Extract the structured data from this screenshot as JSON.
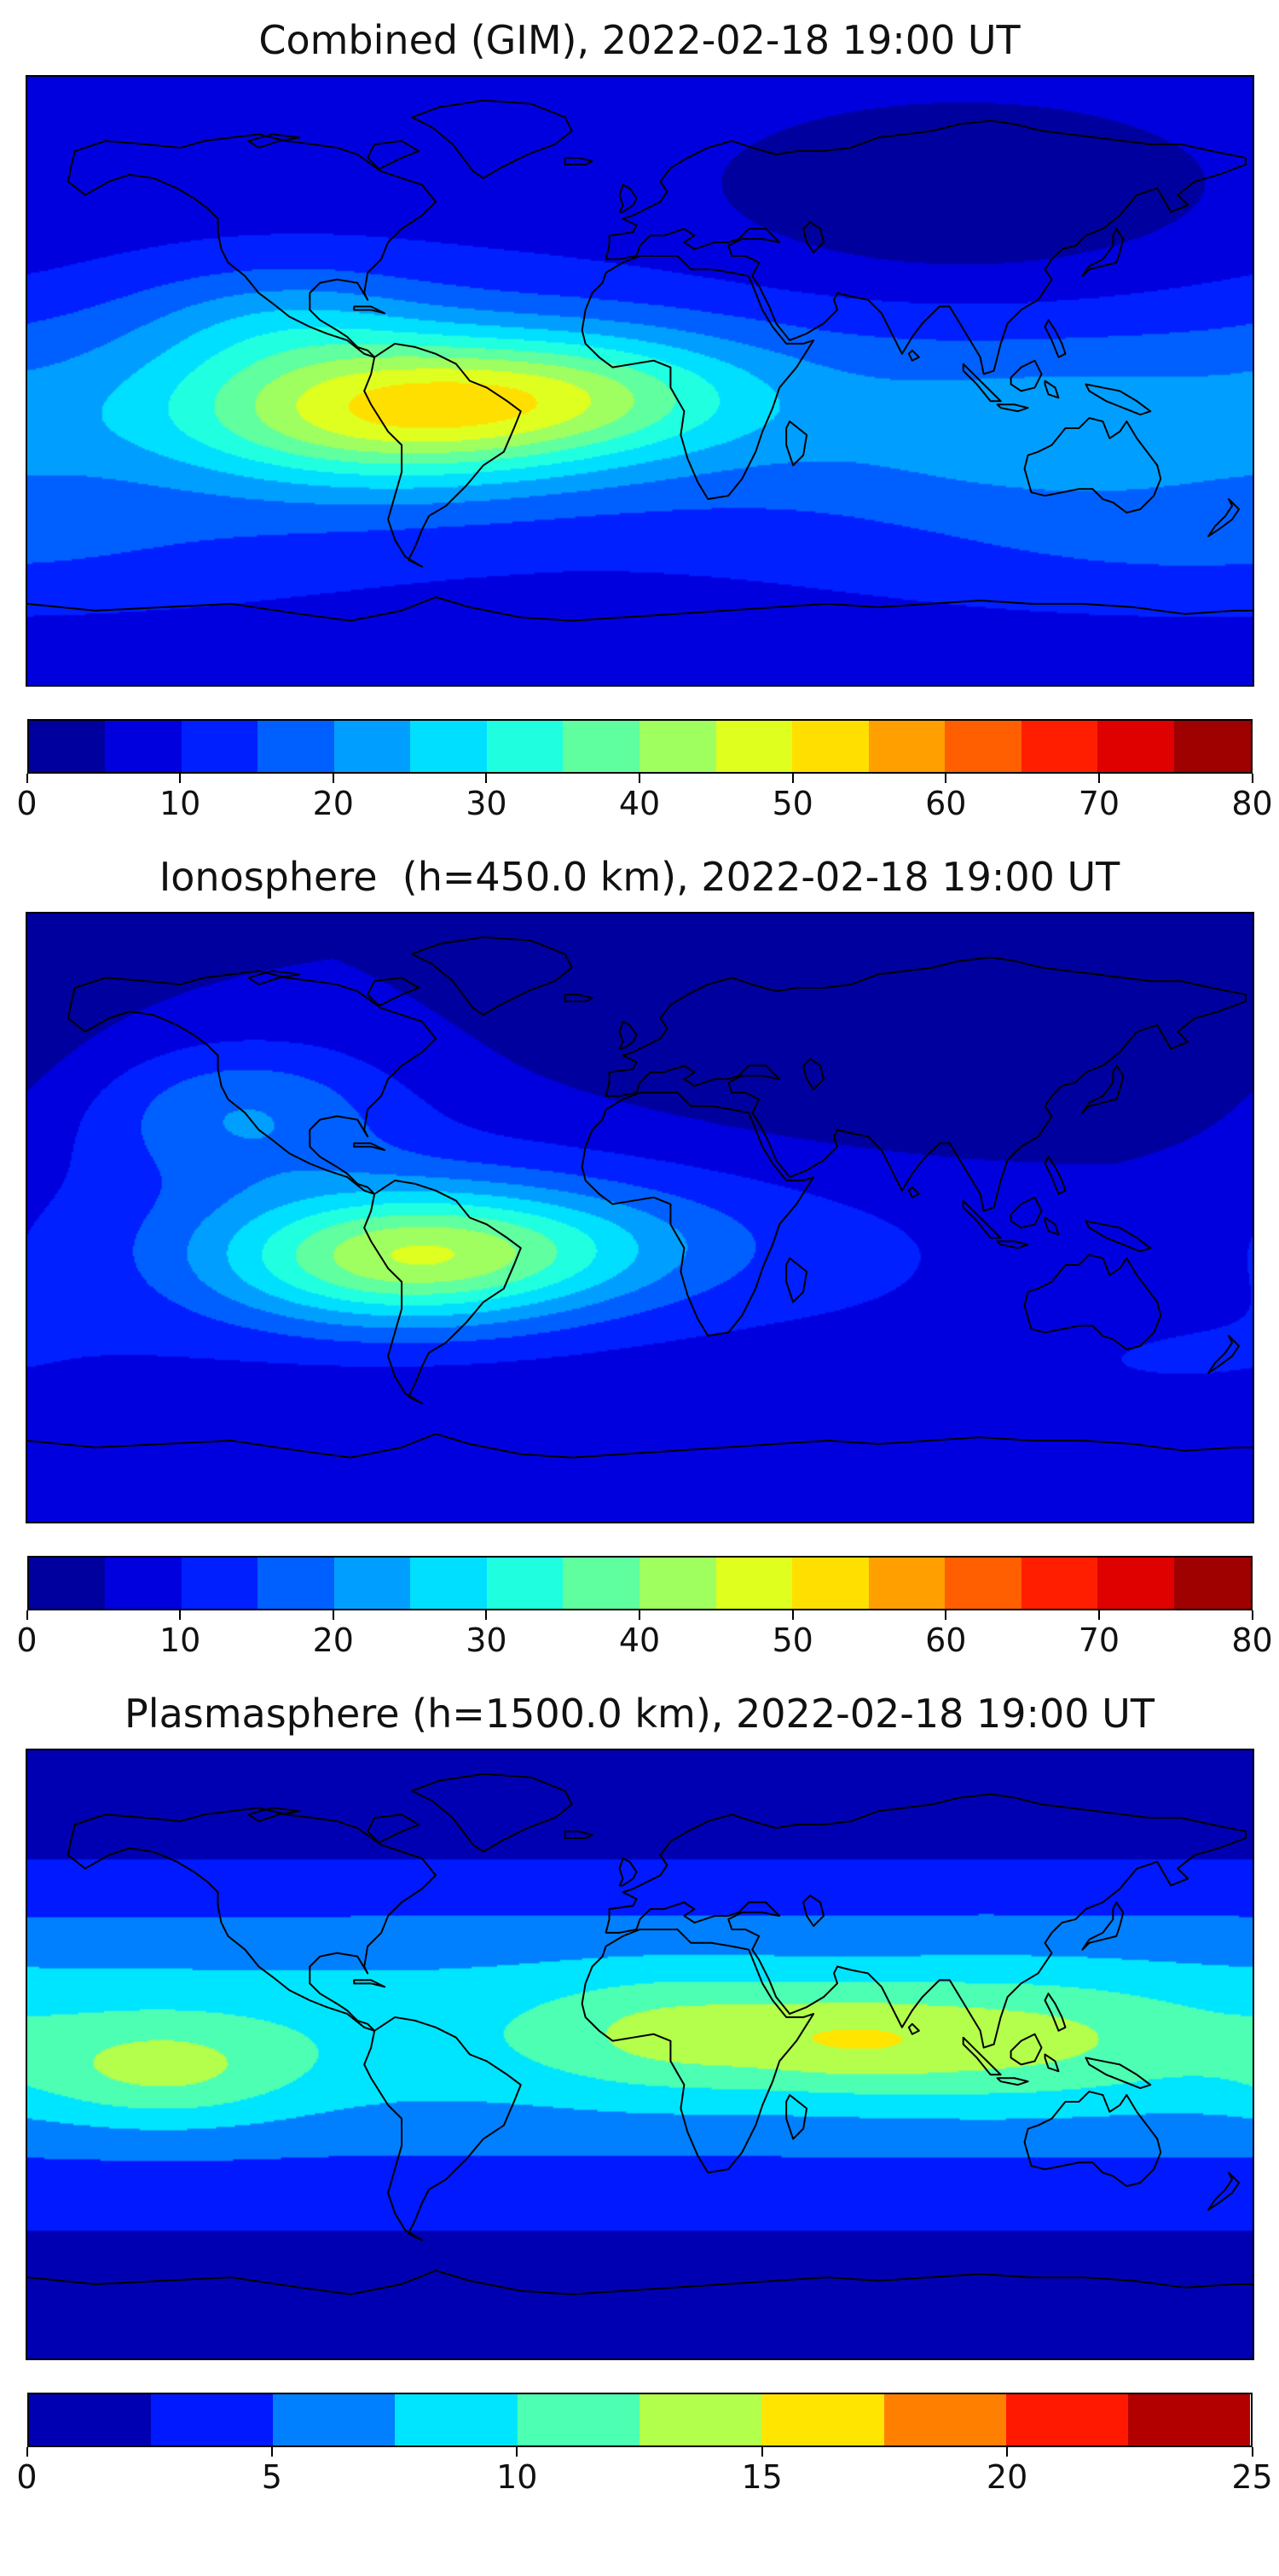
{
  "page": {
    "background": "#ffffff",
    "colormap": "jet"
  },
  "chart_data": [
    {
      "type": "heatmap",
      "subtype": "filled-contour-world-map",
      "title": "Combined (GIM), 2022-02-18 19:00 UT",
      "timestamp_label": "2022-02-18 19:00 UT",
      "projection": "equirectangular",
      "lon_range": [
        -180,
        180
      ],
      "lat_range": [
        -90,
        90
      ],
      "colorbar": {
        "vmin": 0,
        "vmax": 80,
        "ticks": [
          0,
          10,
          20,
          30,
          40,
          50,
          60,
          70,
          80
        ],
        "n_segments": 16,
        "contour_step": 5,
        "colormap": "jet",
        "orientation": "horizontal"
      },
      "approx_peak": {
        "value": 52,
        "lon": -76,
        "lat": -9
      },
      "approx_background": 8,
      "approx_minimum": {
        "value": 2,
        "lon": 95,
        "lat": 48
      },
      "field": {
        "base": 7,
        "blobs": [
          {
            "a": 12,
            "lon": 0,
            "lat": -8,
            "sl": 999,
            "sa": 28
          },
          {
            "a": 28,
            "lon": -76,
            "lat": -9,
            "sl": 44,
            "sa": 15
          },
          {
            "a": 16,
            "lon": -18,
            "lat": -4,
            "sl": 38,
            "sa": 13
          },
          {
            "a": -7,
            "lon": 95,
            "lat": 48,
            "sl": 55,
            "sa": 22
          },
          {
            "a": 8,
            "lon": -105,
            "lat": 18,
            "sl": 30,
            "sa": 12
          },
          {
            "a": 6,
            "lon": 125,
            "lat": -18,
            "sl": 45,
            "sa": 14
          },
          {
            "a": 5,
            "lon": 165,
            "lat": -52,
            "sl": 70,
            "sa": 13
          }
        ]
      }
    },
    {
      "type": "heatmap",
      "subtype": "filled-contour-world-map",
      "title": "Ionosphere  (h=450.0 km), 2022-02-18 19:00 UT",
      "timestamp_label": "2022-02-18 19:00 UT",
      "height_label": "h=450.0 km",
      "projection": "equirectangular",
      "lon_range": [
        -180,
        180
      ],
      "lat_range": [
        -90,
        90
      ],
      "colorbar": {
        "vmin": 0,
        "vmax": 80,
        "ticks": [
          0,
          10,
          20,
          30,
          40,
          50,
          60,
          70,
          80
        ],
        "n_segments": 16,
        "contour_step": 5,
        "colormap": "jet",
        "orientation": "horizontal"
      },
      "approx_peak": {
        "value": 45,
        "lon": -70,
        "lat": -12
      },
      "approx_background": 5,
      "approx_minimum": {
        "value": 0,
        "lon": 90,
        "lat": 50
      },
      "field": {
        "base": 5,
        "blobs": [
          {
            "a": 8,
            "lon": -40,
            "lat": -5,
            "sl": 130,
            "sa": 26
          },
          {
            "a": 30,
            "lon": -70,
            "lat": -12,
            "sl": 40,
            "sa": 14
          },
          {
            "a": 13,
            "lon": -118,
            "lat": 32,
            "sl": 32,
            "sa": 15
          },
          {
            "a": -8,
            "lon": 90,
            "lat": 50,
            "sl": 70,
            "sa": 24
          },
          {
            "a": 7,
            "lon": -20,
            "lat": -8,
            "sl": 38,
            "sa": 12
          },
          {
            "a": 4,
            "lon": 150,
            "lat": -45,
            "sl": 60,
            "sa": 14
          }
        ]
      }
    },
    {
      "type": "heatmap",
      "subtype": "filled-contour-world-map",
      "title": "Plasmasphere (h=1500.0 km), 2022-02-18 19:00 UT",
      "timestamp_label": "2022-02-18 19:00 UT",
      "height_label": "h=1500.0 km",
      "projection": "equirectangular",
      "lon_range": [
        -180,
        180
      ],
      "lat_range": [
        -90,
        90
      ],
      "colorbar": {
        "vmin": 0,
        "vmax": 25,
        "ticks": [
          0,
          5,
          10,
          15,
          20,
          25
        ],
        "n_segments": 10,
        "contour_step": 2.5,
        "colormap": "jet",
        "orientation": "horizontal"
      },
      "approx_peak": {
        "value": 14,
        "lon": -140,
        "lat": -5
      },
      "approx_background": 3,
      "approx_minimum": {
        "value": 1,
        "lon": 0,
        "lat": -85
      },
      "field": {
        "base": 2.5,
        "blobs": [
          {
            "a": 6.5,
            "lon": 20,
            "lat": 6,
            "sl": 999,
            "sa": 26
          },
          {
            "a": 5,
            "lon": -140,
            "lat": -5,
            "sl": 28,
            "sa": 11
          },
          {
            "a": 4.5,
            "lon": 12,
            "lat": 6,
            "sl": 30,
            "sa": 12
          },
          {
            "a": 4.5,
            "lon": 108,
            "lat": 4,
            "sl": 38,
            "sa": 13
          },
          {
            "a": 3,
            "lon": 62,
            "lat": 4,
            "sl": 22,
            "sa": 10
          },
          {
            "a": -2,
            "lon": 0,
            "lat": 78,
            "sl": 999,
            "sa": 16
          },
          {
            "a": -2,
            "lon": 0,
            "lat": -78,
            "sl": 999,
            "sa": 16
          }
        ]
      }
    }
  ],
  "basemap": {
    "outline_color": "#000000",
    "coastlines": [
      {
        "name": "north-america",
        "closed": true,
        "pts": [
          -166,
          68,
          -157,
          71,
          -145,
          70,
          -135,
          69,
          -128,
          71,
          -120,
          72,
          -112,
          73,
          -104,
          71,
          -96,
          70,
          -89,
          69,
          -83,
          67,
          -76,
          62,
          -70,
          60,
          -64,
          58,
          -60,
          53,
          -64,
          49,
          -70,
          45,
          -74,
          41,
          -76,
          36,
          -80,
          32,
          -81,
          26,
          -80,
          24,
          -83,
          29,
          -89,
          30,
          -94,
          29,
          -97,
          26,
          -97,
          21,
          -94,
          18,
          -89,
          15,
          -86,
          13,
          -83,
          10,
          -80,
          9,
          -78,
          7,
          -81,
          8,
          -86,
          12,
          -92,
          14,
          -97,
          16,
          -103,
          19,
          -108,
          23,
          -112,
          26,
          -116,
          31,
          -121,
          35,
          -123,
          39,
          -124,
          44,
          -124,
          48,
          -127,
          51,
          -131,
          54,
          -136,
          57,
          -143,
          60,
          -150,
          61,
          -156,
          59,
          -163,
          55,
          -168,
          59,
          -167,
          64
        ]
      },
      {
        "name": "greenland",
        "closed": true,
        "pts": [
          -46,
          60,
          -41,
          63,
          -33,
          67,
          -25,
          70,
          -20,
          74,
          -22,
          78,
          -32,
          82,
          -46,
          83,
          -59,
          81,
          -67,
          78,
          -61,
          75,
          -55,
          70,
          -52,
          66,
          -49,
          62
        ]
      },
      {
        "name": "baffin-island",
        "closed": true,
        "pts": [
          -76,
          63,
          -70,
          66,
          -65,
          68,
          -70,
          71,
          -78,
          70,
          -80,
          66,
          -77,
          63
        ]
      },
      {
        "name": "victoria-island",
        "closed": true,
        "pts": [
          -112,
          69,
          -106,
          71,
          -100,
          72,
          -108,
          73,
          -115,
          71
        ]
      },
      {
        "name": "south-america",
        "closed": true,
        "pts": [
          -78,
          7,
          -72,
          11,
          -66,
          10,
          -60,
          8,
          -54,
          5,
          -50,
          0,
          -45,
          -2,
          -39,
          -6,
          -35,
          -9,
          -37,
          -14,
          -40,
          -21,
          -46,
          -25,
          -51,
          -31,
          -57,
          -37,
          -62,
          -40,
          -64,
          -44,
          -66,
          -49,
          -68,
          -53,
          -64,
          -55,
          -69,
          -52,
          -72,
          -47,
          -74,
          -41,
          -72,
          -34,
          -70,
          -27,
          -70,
          -19,
          -74,
          -15,
          -79,
          -7,
          -81,
          -3,
          -79,
          2
        ]
      },
      {
        "name": "cuba",
        "closed": true,
        "pts": [
          -84,
          22,
          -79,
          22,
          -75,
          20,
          -79,
          21,
          -84,
          21
        ]
      },
      {
        "name": "africa",
        "closed": true,
        "pts": [
          -10,
          32,
          -5,
          35,
          0,
          37,
          6,
          37,
          11,
          37,
          15,
          33,
          21,
          33,
          27,
          32,
          32,
          31,
          34,
          26,
          36,
          21,
          39,
          16,
          43,
          11,
          48,
          11,
          51,
          12,
          46,
          4,
          41,
          -2,
          39,
          -8,
          36,
          -15,
          34,
          -21,
          30,
          -29,
          26,
          -34,
          20,
          -35,
          17,
          -30,
          14,
          -23,
          12,
          -16,
          13,
          -9,
          9,
          -2,
          9,
          4,
          4,
          6,
          -2,
          5,
          -8,
          4,
          -12,
          7,
          -16,
          11,
          -17,
          15,
          -16,
          21,
          -14,
          26,
          -11,
          29
        ]
      },
      {
        "name": "madagascar",
        "closed": true,
        "pts": [
          44,
          -12,
          49,
          -16,
          48,
          -22,
          45,
          -25,
          43,
          -19,
          43,
          -14
        ]
      },
      {
        "name": "eurasia",
        "closed": true,
        "pts": [
          -10,
          36,
          -9,
          40,
          -9,
          43,
          -2,
          44,
          -1,
          46,
          -5,
          48,
          -2,
          49,
          2,
          51,
          6,
          53,
          8,
          56,
          6,
          59,
          9,
          63,
          14,
          66,
          20,
          69,
          27,
          71,
          33,
          69,
          40,
          67,
          46,
          68,
          54,
          68,
          62,
          69,
          70,
          72,
          78,
          73,
          86,
          74,
          94,
          76,
          103,
          77,
          110,
          76,
          118,
          74,
          126,
          73,
          134,
          72,
          142,
          71,
          150,
          70,
          159,
          70,
          168,
          68,
          178,
          66,
          178,
          64,
          170,
          61,
          163,
          59,
          158,
          55,
          161,
          52,
          156,
          50,
          152,
          57,
          146,
          55,
          141,
          49,
          136,
          45,
          131,
          43,
          128,
          40,
          124,
          39,
          121,
          36,
          119,
          33,
          121,
          30,
          117,
          24,
          112,
          21,
          108,
          17,
          106,
          11,
          104,
          3,
          101,
          2,
          100,
          7,
          97,
          12,
          94,
          17,
          91,
          22,
          88,
          22,
          86,
          20,
          83,
          17,
          80,
          13,
          77,
          8,
          74,
          14,
          71,
          20,
          67,
          24,
          62,
          25,
          58,
          26,
          57,
          24,
          58,
          21,
          54,
          17,
          49,
          14,
          44,
          12,
          40,
          17,
          38,
          22,
          35,
          28,
          33,
          31,
          35,
          35,
          31,
          37,
          27,
          37,
          26,
          40,
          30,
          42,
          36,
          42,
          41,
          41,
          37,
          45,
          32,
          45,
          29,
          42,
          26,
          41,
          22,
          41,
          19,
          40,
          16,
          39,
          13,
          41,
          16,
          43,
          13,
          45,
          10,
          44,
          7,
          43,
          3,
          43,
          0,
          40,
          -1,
          37,
          -6,
          36
        ]
      },
      {
        "name": "britain",
        "closed": true,
        "pts": [
          -5,
          50,
          -2,
          52,
          -1,
          54,
          -3,
          57,
          -5,
          58,
          -6,
          55,
          -5,
          52,
          -6,
          50
        ]
      },
      {
        "name": "iceland",
        "closed": true,
        "pts": [
          -22,
          64,
          -16,
          64,
          -14,
          65,
          -18,
          66,
          -22,
          66
        ]
      },
      {
        "name": "caspian-sea",
        "closed": true,
        "pts": [
          50,
          47,
          53,
          45,
          54,
          41,
          51,
          38,
          49,
          41,
          48,
          45
        ]
      },
      {
        "name": "sri-lanka",
        "closed": true,
        "pts": [
          80,
          9,
          82,
          7,
          80,
          6,
          79,
          8
        ]
      },
      {
        "name": "japan",
        "closed": true,
        "pts": [
          140,
          45,
          142,
          42,
          141,
          38,
          140,
          35,
          136,
          34,
          132,
          33,
          130,
          31,
          132,
          34,
          136,
          36,
          139,
          40,
          139,
          43
        ]
      },
      {
        "name": "borneo",
        "closed": true,
        "pts": [
          109,
          1,
          112,
          4,
          116,
          6,
          118,
          2,
          116,
          -2,
          112,
          -3,
          109,
          -1
        ]
      },
      {
        "name": "sumatra",
        "closed": true,
        "pts": [
          95,
          5,
          99,
          1,
          103,
          -3,
          106,
          -6,
          103,
          -6,
          99,
          -1,
          95,
          3
        ]
      },
      {
        "name": "java",
        "closed": true,
        "pts": [
          105,
          -7,
          110,
          -7,
          114,
          -8,
          111,
          -9,
          106,
          -8
        ]
      },
      {
        "name": "sulawesi",
        "closed": true,
        "pts": [
          119,
          0,
          122,
          -2,
          123,
          -5,
          120,
          -4,
          119,
          -1
        ]
      },
      {
        "name": "philippines",
        "closed": true,
        "pts": [
          120,
          18,
          122,
          15,
          124,
          11,
          125,
          8,
          123,
          7,
          121,
          12,
          119,
          16
        ]
      },
      {
        "name": "new-guinea",
        "closed": true,
        "pts": [
          131,
          -1,
          136,
          -2,
          141,
          -3,
          146,
          -6,
          150,
          -9,
          147,
          -10,
          142,
          -8,
          137,
          -6,
          132,
          -3
        ]
      },
      {
        "name": "australia",
        "closed": true,
        "pts": [
          114,
          -22,
          113,
          -26,
          115,
          -33,
          119,
          -34,
          124,
          -33,
          129,
          -32,
          133,
          -32,
          136,
          -35,
          139,
          -36,
          143,
          -39,
          147,
          -38,
          151,
          -34,
          153,
          -29,
          152,
          -25,
          149,
          -21,
          146,
          -17,
          143,
          -12,
          141,
          -15,
          138,
          -17,
          136,
          -12,
          132,
          -11,
          129,
          -14,
          125,
          -14,
          121,
          -19,
          117,
          -21
        ]
      },
      {
        "name": "new-zealand",
        "closed": true,
        "pts": [
          173,
          -35,
          176,
          -38,
          174,
          -41,
          170,
          -44,
          167,
          -46,
          169,
          -43,
          172,
          -40,
          174,
          -37
        ]
      },
      {
        "name": "antarctica-coast",
        "closed": false,
        "pts": [
          -180,
          -66,
          -160,
          -68,
          -140,
          -67,
          -120,
          -66,
          -100,
          -69,
          -85,
          -71,
          -70,
          -68,
          -60,
          -64,
          -50,
          -67,
          -35,
          -70,
          -20,
          -71,
          -5,
          -70,
          10,
          -69,
          25,
          -68,
          40,
          -67,
          55,
          -66,
          70,
          -67,
          85,
          -66,
          100,
          -65,
          115,
          -66,
          130,
          -66,
          145,
          -67,
          160,
          -69,
          175,
          -68,
          180,
          -68
        ]
      }
    ]
  }
}
